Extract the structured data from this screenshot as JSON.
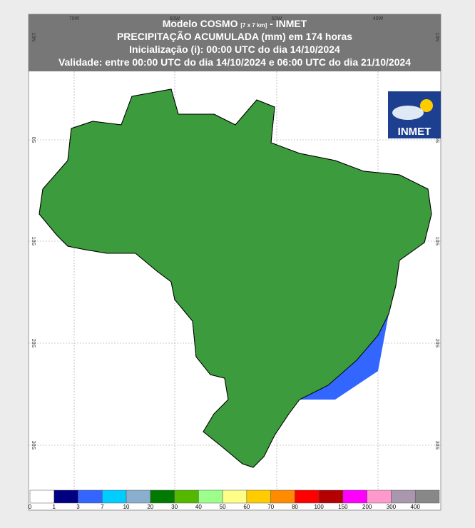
{
  "header": {
    "model": "Modelo COSMO",
    "resolution": "[7 x 7 km]",
    "suffix": "- INMET",
    "lines": [
      "PRECIPITAÇÃO ACUMULADA (mm) em 174 horas",
      "Inicialização (i): 00:00 UTC do dia 14/10/2024",
      "Validade: entre 00:00 UTC do dia 14/10/2024 e 06:00 UTC do dia 21/10/2024"
    ]
  },
  "logo": {
    "text": "INMET"
  },
  "grid": {
    "lon_labels": [
      "70W",
      "60W",
      "50W",
      "40W"
    ],
    "lat_labels": [
      "10N",
      "0S",
      "10S",
      "20S",
      "30S"
    ]
  },
  "colorbar": {
    "labels": [
      "0",
      "1",
      "3",
      "7",
      "10",
      "20",
      "30",
      "40",
      "50",
      "60",
      "70",
      "80",
      "100",
      "150",
      "200",
      "300",
      "400"
    ],
    "colors": [
      "#ffffff",
      "#000080",
      "#3366ff",
      "#00ccff",
      "#8aaecd",
      "#007a00",
      "#55b800",
      "#9cff8c",
      "#ffff88",
      "#ffcc00",
      "#ff8c00",
      "#ff0000",
      "#b30000",
      "#ff00ff",
      "#ff99cc",
      "#a897ad",
      "#888888"
    ]
  }
}
